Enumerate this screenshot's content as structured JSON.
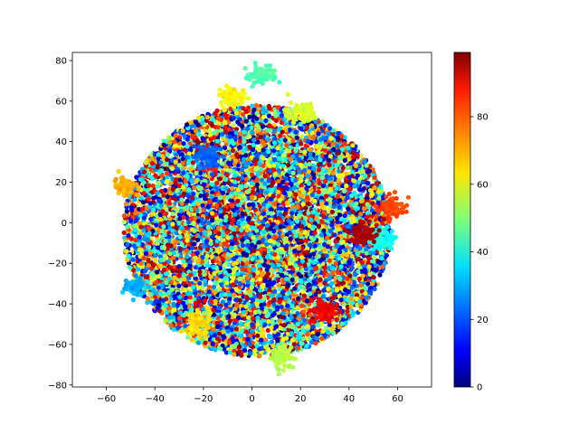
{
  "chart_data": {
    "type": "scatter",
    "title": "",
    "xlabel": "",
    "ylabel": "",
    "xlim": [
      -74,
      74
    ],
    "ylim": [
      -81,
      84
    ],
    "x_ticks": [
      -60,
      -40,
      -20,
      0,
      20,
      40,
      60
    ],
    "y_ticks": [
      -80,
      -60,
      -40,
      -20,
      0,
      20,
      40,
      60,
      80
    ],
    "grid": false,
    "colormap": "jet",
    "color_range": [
      0,
      99
    ],
    "colorbar_ticks": [
      0,
      20,
      40,
      60,
      80
    ],
    "point_color": "#000080",
    "cloud": {
      "center": [
        2,
        -4
      ],
      "radius_x": 55,
      "radius_y": 62,
      "approx_points": 9000,
      "label_range": [
        0,
        99
      ]
    },
    "clusters": [
      {
        "x": 4,
        "y": 72,
        "label": 45
      },
      {
        "x": 12,
        "y": -66,
        "label": 55
      },
      {
        "x": -52,
        "y": 18,
        "label": 70
      },
      {
        "x": 58,
        "y": 8,
        "label": 80
      },
      {
        "x": -22,
        "y": -50,
        "label": 65
      },
      {
        "x": 20,
        "y": 54,
        "label": 58
      },
      {
        "x": -48,
        "y": -32,
        "label": 30
      },
      {
        "x": 30,
        "y": -44,
        "label": 88
      },
      {
        "x": 54,
        "y": -8,
        "label": 38
      },
      {
        "x": -8,
        "y": 62,
        "label": 62
      },
      {
        "x": 46,
        "y": -6,
        "label": 95
      },
      {
        "x": -18,
        "y": 32,
        "label": 22
      }
    ]
  }
}
